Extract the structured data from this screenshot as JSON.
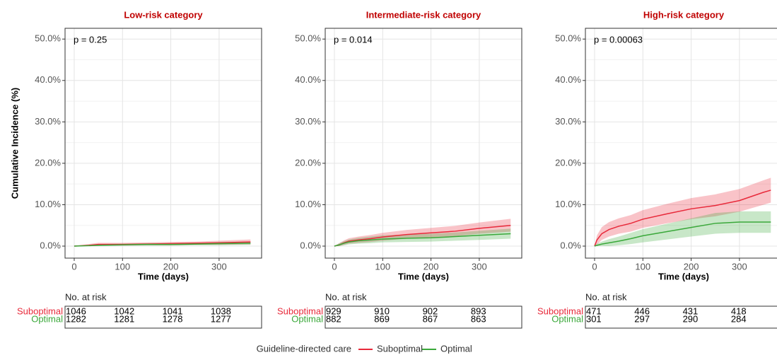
{
  "chart_data": [
    {
      "type": "line",
      "title": "Low-risk category",
      "annotation": "p = 0.25",
      "ylabel": "Cumulative Incidence (%)",
      "xlabel": "Time (days)",
      "xlim": [
        -19,
        388
      ],
      "xticks": [
        0,
        100,
        200,
        300
      ],
      "ylim": [
        -2.9,
        52.6
      ],
      "yticks": [
        {
          "value": 0,
          "label": "0.0%"
        },
        {
          "value": 10,
          "label": "10.0%"
        },
        {
          "value": 20,
          "label": "20.0%"
        },
        {
          "value": 30,
          "label": "30.0%"
        },
        {
          "value": 40,
          "label": "40.0%"
        },
        {
          "value": 50,
          "label": "50.0%"
        }
      ],
      "grid": true,
      "series": [
        {
          "name": "Suboptimal",
          "color": "#e8293a",
          "x": [
            0,
            30,
            50,
            100,
            150,
            200,
            250,
            300,
            365
          ],
          "values": [
            0,
            0.2,
            0.4,
            0.4,
            0.5,
            0.6,
            0.7,
            0.8,
            1.0
          ],
          "lower": [
            0,
            0,
            0.1,
            0.1,
            0.2,
            0.2,
            0.3,
            0.3,
            0.4
          ],
          "upper": [
            0,
            0.5,
            0.8,
            0.8,
            0.9,
            1.0,
            1.1,
            1.3,
            1.6
          ]
        },
        {
          "name": "Optimal",
          "color": "#3aa83a",
          "x": [
            0,
            30,
            50,
            100,
            150,
            200,
            250,
            300,
            365
          ],
          "values": [
            0,
            0.1,
            0.2,
            0.3,
            0.4,
            0.4,
            0.5,
            0.6,
            0.7
          ],
          "lower": [
            0,
            0,
            0,
            0.1,
            0.1,
            0.1,
            0.2,
            0.2,
            0.3
          ],
          "upper": [
            0,
            0.3,
            0.5,
            0.6,
            0.7,
            0.7,
            0.8,
            1.0,
            1.1
          ]
        }
      ],
      "risk_table": {
        "title": "No. at risk",
        "x": [
          0,
          100,
          200,
          300
        ],
        "rows": [
          {
            "name": "Suboptimal",
            "color": "#e8293a",
            "values": [
              1046,
              1042,
              1041,
              1038
            ]
          },
          {
            "name": "Optimal",
            "color": "#3aa83a",
            "values": [
              1282,
              1281,
              1278,
              1277
            ]
          }
        ]
      }
    },
    {
      "type": "line",
      "title": "Intermediate-risk category",
      "annotation": "p = 0.014",
      "xlabel": "Time (days)",
      "xlim": [
        -19,
        388
      ],
      "xticks": [
        0,
        100,
        200,
        300
      ],
      "ylim": [
        -2.9,
        52.6
      ],
      "yticks": [
        {
          "value": 0,
          "label": "0.0%"
        },
        {
          "value": 10,
          "label": "10.0%"
        },
        {
          "value": 20,
          "label": "20.0%"
        },
        {
          "value": 30,
          "label": "30.0%"
        },
        {
          "value": 40,
          "label": "40.0%"
        },
        {
          "value": 50,
          "label": "50.0%"
        }
      ],
      "grid": true,
      "series": [
        {
          "name": "Suboptimal",
          "color": "#e8293a",
          "x": [
            0,
            10,
            20,
            30,
            50,
            75,
            100,
            150,
            200,
            250,
            300,
            365
          ],
          "values": [
            0,
            0.3,
            0.8,
            1.2,
            1.5,
            1.8,
            2.2,
            2.8,
            3.2,
            3.6,
            4.3,
            5.0
          ],
          "lower": [
            0,
            0,
            0.3,
            0.6,
            0.8,
            1.0,
            1.3,
            1.8,
            2.1,
            2.4,
            3.0,
            3.5
          ],
          "upper": [
            0,
            0.7,
            1.4,
            1.9,
            2.3,
            2.7,
            3.2,
            3.9,
            4.4,
            4.9,
            5.7,
            6.6
          ]
        },
        {
          "name": "Optimal",
          "color": "#3aa83a",
          "x": [
            0,
            10,
            20,
            30,
            50,
            75,
            100,
            150,
            200,
            250,
            300,
            365
          ],
          "values": [
            0,
            0.3,
            0.7,
            1.0,
            1.3,
            1.5,
            1.7,
            1.9,
            2.0,
            2.3,
            2.6,
            3.0
          ],
          "lower": [
            0,
            0,
            0.2,
            0.4,
            0.6,
            0.7,
            0.9,
            1.0,
            1.1,
            1.3,
            1.5,
            1.8
          ],
          "upper": [
            0,
            0.7,
            1.2,
            1.6,
            2.0,
            2.3,
            2.6,
            2.8,
            3.0,
            3.3,
            3.7,
            4.2
          ]
        }
      ],
      "risk_table": {
        "title": "No. at risk",
        "x": [
          0,
          100,
          200,
          300
        ],
        "rows": [
          {
            "name": "Suboptimal",
            "color": "#e8293a",
            "values": [
              929,
              910,
              902,
              893
            ]
          },
          {
            "name": "Optimal",
            "color": "#3aa83a",
            "values": [
              882,
              869,
              867,
              863
            ]
          }
        ]
      }
    },
    {
      "type": "line",
      "title": "High-risk category",
      "annotation": "p = 0.00063",
      "xlabel": "Time (days)",
      "xlim": [
        -19,
        388
      ],
      "xticks": [
        0,
        100,
        200,
        300
      ],
      "ylim": [
        -2.9,
        52.6
      ],
      "yticks": [
        {
          "value": 0,
          "label": "0.0%"
        },
        {
          "value": 10,
          "label": "10.0%"
        },
        {
          "value": 20,
          "label": "20.0%"
        },
        {
          "value": 30,
          "label": "30.0%"
        },
        {
          "value": 40,
          "label": "40.0%"
        },
        {
          "value": 50,
          "label": "50.0%"
        }
      ],
      "grid": true,
      "series": [
        {
          "name": "Suboptimal",
          "color": "#e8293a",
          "x": [
            0,
            5,
            15,
            30,
            50,
            75,
            100,
            150,
            200,
            250,
            300,
            350,
            365
          ],
          "values": [
            0,
            1.5,
            3.0,
            4.0,
            4.8,
            5.5,
            6.5,
            7.8,
            9.0,
            9.8,
            11.0,
            13.0,
            13.5
          ],
          "lower": [
            0,
            0.4,
            1.5,
            2.3,
            3.0,
            3.5,
            4.4,
            5.5,
            6.5,
            7.2,
            8.3,
            10.0,
            10.5
          ],
          "upper": [
            0,
            2.6,
            4.6,
            5.8,
            6.7,
            7.5,
            8.7,
            10.2,
            11.6,
            12.5,
            13.8,
            15.9,
            16.5
          ]
        },
        {
          "name": "Optimal",
          "color": "#3aa83a",
          "x": [
            0,
            5,
            15,
            30,
            50,
            75,
            100,
            150,
            200,
            250,
            300,
            350,
            365
          ],
          "values": [
            0,
            0.2,
            0.5,
            0.8,
            1.2,
            1.8,
            2.5,
            3.5,
            4.5,
            5.5,
            5.8,
            5.8,
            5.8
          ],
          "lower": [
            0,
            0,
            0,
            0,
            0.2,
            0.5,
            0.9,
            1.6,
            2.3,
            3.0,
            3.2,
            3.2,
            3.2
          ],
          "upper": [
            0,
            0.6,
            1.1,
            1.7,
            2.3,
            3.2,
            4.1,
            5.4,
            6.7,
            8.0,
            8.4,
            8.4,
            8.4
          ]
        }
      ],
      "risk_table": {
        "title": "No. at risk",
        "x": [
          0,
          100,
          200,
          300
        ],
        "rows": [
          {
            "name": "Suboptimal",
            "color": "#e8293a",
            "values": [
              471,
              446,
              431,
              418
            ]
          },
          {
            "name": "Optimal",
            "color": "#3aa83a",
            "values": [
              301,
              297,
              290,
              284
            ]
          }
        ]
      }
    }
  ],
  "legend": {
    "title": "Guideline-directed care"
  }
}
